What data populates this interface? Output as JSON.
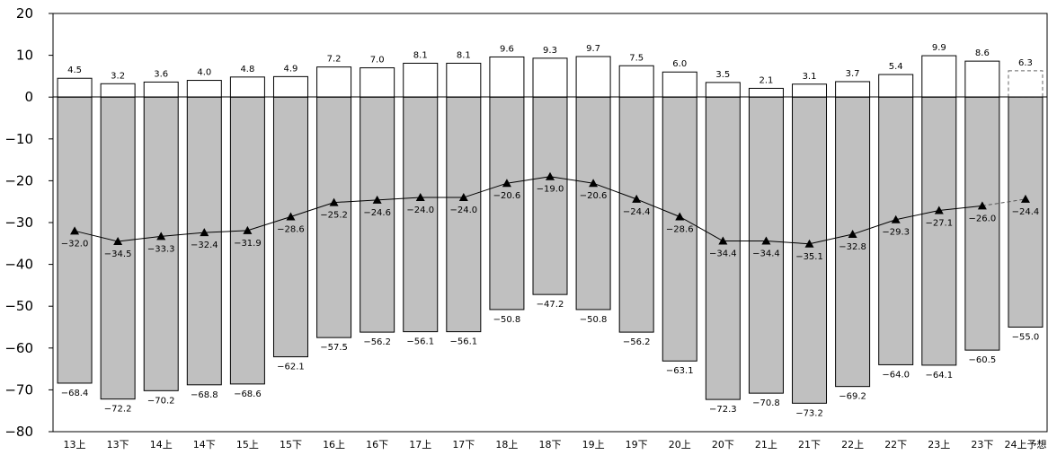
{
  "chart_data": {
    "type": "bar",
    "categories": [
      "13上",
      "13下",
      "14上",
      "14下",
      "15上",
      "15下",
      "16上",
      "16下",
      "17上",
      "17下",
      "18上",
      "18下",
      "19上",
      "19下",
      "20上",
      "20下",
      "21上",
      "21下",
      "22上",
      "22下",
      "23上",
      "23下",
      "24上予想"
    ],
    "series": [
      {
        "values": [
          4.5,
          3.2,
          3.6,
          4.0,
          4.8,
          4.9,
          7.2,
          7.0,
          8.1,
          8.1,
          9.6,
          9.3,
          9.7,
          7.5,
          6.0,
          3.5,
          2.1,
          3.1,
          3.7,
          5.4,
          9.9,
          8.6,
          6.3
        ],
        "color": "#ffffff"
      },
      {
        "values": [
          -68.4,
          -72.2,
          -70.2,
          -68.8,
          -68.6,
          -62.1,
          -57.5,
          -56.2,
          -56.1,
          -56.1,
          -50.8,
          -47.2,
          -50.8,
          -56.2,
          -63.1,
          -72.3,
          -70.8,
          -73.2,
          -69.2,
          -64.0,
          -64.1,
          -60.5,
          -55.0
        ],
        "color": "#c0c0c0"
      },
      {
        "type": "line",
        "values": [
          -32.0,
          -34.5,
          -33.3,
          -32.4,
          -31.9,
          -28.6,
          -25.2,
          -24.6,
          -24.0,
          -24.0,
          -20.6,
          -19.0,
          -20.6,
          -24.4,
          -28.6,
          -34.4,
          -34.4,
          -35.1,
          -32.8,
          -29.3,
          -27.1,
          -26.0,
          -24.4
        ],
        "color": "#000000",
        "marker": "triangle"
      }
    ],
    "pos_labels": [
      "4.5",
      "3.2",
      "3.6",
      "4.0",
      "4.8",
      "4.9",
      "7.2",
      "7.0",
      "8.1",
      "8.1",
      "9.6",
      "9.3",
      "9.7",
      "7.5",
      "6.0",
      "3.5",
      "2.1",
      "3.1",
      "3.7",
      "5.4",
      "9.9",
      "8.6",
      "6.3"
    ],
    "neg_labels": [
      "−68.4",
      "−72.2",
      "−70.2",
      "−68.8",
      "−68.6",
      "−62.1",
      "−57.5",
      "−56.2",
      "−56.1",
      "−56.1",
      "−50.8",
      "−47.2",
      "−50.8",
      "−56.2",
      "−63.1",
      "−72.3",
      "−70.8",
      "−73.2",
      "−69.2",
      "−64.0",
      "−64.1",
      "−60.5",
      "−55.0"
    ],
    "line_labels": [
      "−32.0",
      "−34.5",
      "−33.3",
      "−32.4",
      "−31.9",
      "−28.6",
      "−25.2",
      "−24.6",
      "−24.0",
      "−24.0",
      "−20.6",
      "−19.0",
      "−20.6",
      "−24.4",
      "−28.6",
      "−34.4",
      "−34.4",
      "−35.1",
      "−32.8",
      "−29.3",
      "−27.1",
      "−26.0",
      "−24.4"
    ],
    "forecast_index": 22,
    "yticks": [
      20,
      10,
      0,
      -10,
      -20,
      -30,
      -40,
      -50,
      -60,
      -70,
      -80
    ],
    "ytick_labels": [
      "20",
      "10",
      "0",
      "−10",
      "−20",
      "−30",
      "−40",
      "−50",
      "−60",
      "−70",
      "−80"
    ],
    "ylim": [
      -80,
      20
    ],
    "grid": false,
    "xlabel": "",
    "ylabel": "",
    "title": ""
  }
}
